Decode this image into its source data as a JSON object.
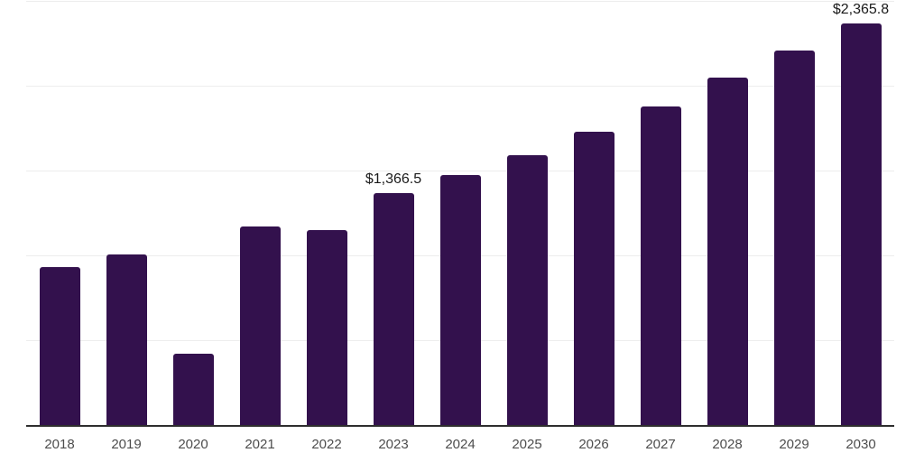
{
  "chart_data": {
    "type": "bar",
    "title": "",
    "xlabel": "",
    "ylabel": "",
    "categories": [
      "2018",
      "2019",
      "2020",
      "2021",
      "2022",
      "2023",
      "2024",
      "2025",
      "2026",
      "2027",
      "2028",
      "2029",
      "2030"
    ],
    "values": [
      930,
      1005,
      420,
      1170,
      1150,
      1366.5,
      1475,
      1590,
      1730,
      1880,
      2050,
      2210,
      2365.8
    ],
    "data_labels": [
      {
        "category": "2023",
        "text": "$1,366.5"
      },
      {
        "category": "2030",
        "text": "$2,365.8"
      }
    ],
    "ylim": [
      0,
      2500
    ],
    "gridline_values": [
      500,
      1000,
      1500,
      2000,
      2500
    ],
    "grid": "horizontal",
    "legend": "none",
    "colors": {
      "bar": "#33114d",
      "gridline": "#ededed",
      "axis": "#2e2e2e",
      "tick_label": "#4d4d4d",
      "data_label": "#1a1a1a",
      "background": "#ffffff"
    }
  }
}
